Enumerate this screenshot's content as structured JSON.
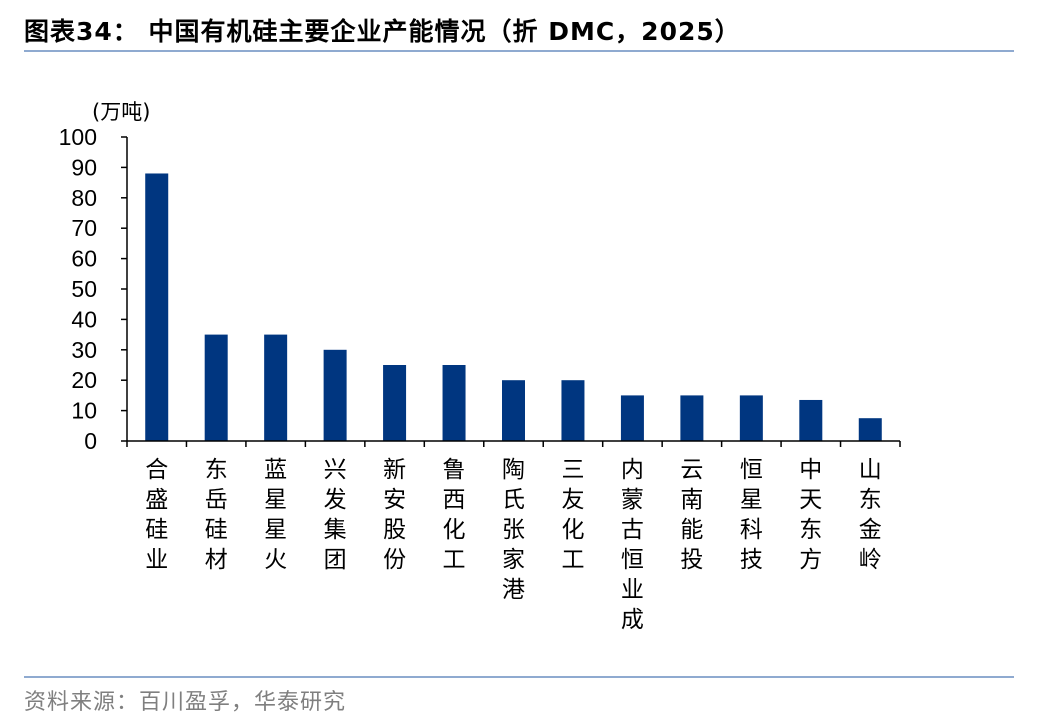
{
  "figure": {
    "title": "图表34：  中国有机硅主要企业产能情况（折 DMC，2025）",
    "source": "资料来源：百川盈孚，华泰研究"
  },
  "colors": {
    "bar": "#003680",
    "rule": "#8faad0",
    "source_text": "#7f7f7f"
  },
  "chart_data": {
    "type": "bar",
    "unit_label": "(万吨)",
    "categories": [
      "合盛硅业",
      "东岳硅材",
      "蓝星星火",
      "兴发集团",
      "新安股份",
      "鲁西化工",
      "陶氏张家港",
      "三友化工",
      "内蒙古恒业成",
      "云南能投",
      "恒星科技",
      "中天东方",
      "山东金岭"
    ],
    "values": [
      88,
      35,
      35,
      30,
      25,
      25,
      20,
      20,
      15,
      15,
      15,
      13.5,
      7.5
    ],
    "yticks": [
      0,
      10,
      20,
      30,
      40,
      50,
      60,
      70,
      80,
      90,
      100
    ],
    "ylim": [
      0,
      100
    ],
    "grid": false,
    "legend": "none"
  }
}
